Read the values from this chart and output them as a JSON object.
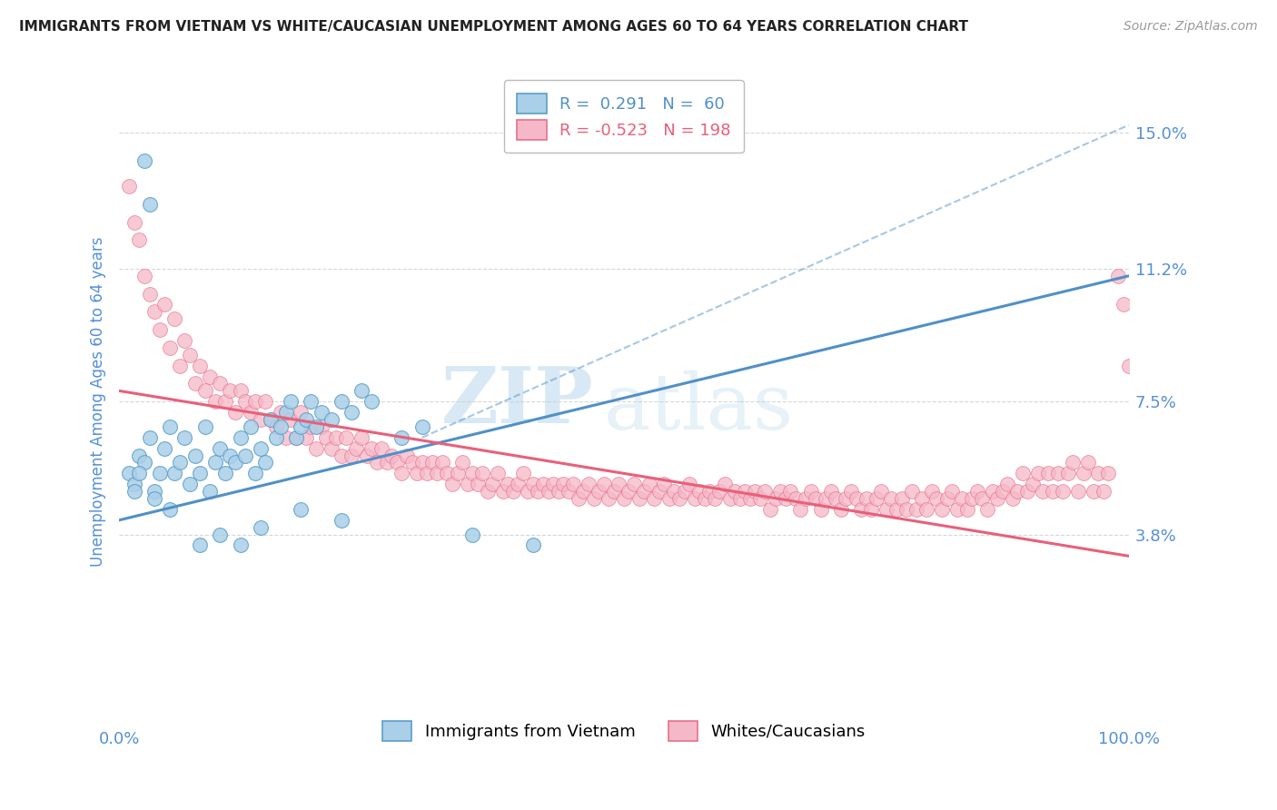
{
  "title": "IMMIGRANTS FROM VIETNAM VS WHITE/CAUCASIAN UNEMPLOYMENT AMONG AGES 60 TO 64 YEARS CORRELATION CHART",
  "source": "Source: ZipAtlas.com",
  "ylabel": "Unemployment Among Ages 60 to 64 years",
  "xlim": [
    0,
    100
  ],
  "ylim": [
    -1.5,
    16.5
  ],
  "ytick_vals": [
    3.8,
    7.5,
    11.2,
    15.0
  ],
  "ytick_labels": [
    "3.8%",
    "7.5%",
    "11.2%",
    "15.0%"
  ],
  "legend_blue_r": "R =  0.291",
  "legend_blue_n": "N =  60",
  "legend_pink_r": "R = -0.523",
  "legend_pink_n": "N = 198",
  "blue_color": "#aacfe8",
  "pink_color": "#f5b8c8",
  "blue_edge_color": "#5a9ec8",
  "pink_edge_color": "#e8708a",
  "blue_line_color": "#5090c8",
  "pink_line_color": "#e8607a",
  "grid_color": "#cccccc",
  "title_color": "#222222",
  "tick_color": "#5590d8",
  "watermark_zip": "ZIP",
  "watermark_atlas": "atlas",
  "background_color": "#ffffff",
  "blue_scatter": [
    [
      1.0,
      5.5
    ],
    [
      1.5,
      5.2
    ],
    [
      2.0,
      6.0
    ],
    [
      2.5,
      5.8
    ],
    [
      3.0,
      6.5
    ],
    [
      3.5,
      5.0
    ],
    [
      4.0,
      5.5
    ],
    [
      4.5,
      6.2
    ],
    [
      5.0,
      6.8
    ],
    [
      5.5,
      5.5
    ],
    [
      6.0,
      5.8
    ],
    [
      6.5,
      6.5
    ],
    [
      7.0,
      5.2
    ],
    [
      7.5,
      6.0
    ],
    [
      8.0,
      5.5
    ],
    [
      8.5,
      6.8
    ],
    [
      9.0,
      5.0
    ],
    [
      9.5,
      5.8
    ],
    [
      10.0,
      6.2
    ],
    [
      10.5,
      5.5
    ],
    [
      11.0,
      6.0
    ],
    [
      11.5,
      5.8
    ],
    [
      12.0,
      6.5
    ],
    [
      12.5,
      6.0
    ],
    [
      13.0,
      6.8
    ],
    [
      13.5,
      5.5
    ],
    [
      14.0,
      6.2
    ],
    [
      14.5,
      5.8
    ],
    [
      15.0,
      7.0
    ],
    [
      15.5,
      6.5
    ],
    [
      16.0,
      6.8
    ],
    [
      16.5,
      7.2
    ],
    [
      17.0,
      7.5
    ],
    [
      17.5,
      6.5
    ],
    [
      18.0,
      6.8
    ],
    [
      18.5,
      7.0
    ],
    [
      19.0,
      7.5
    ],
    [
      19.5,
      6.8
    ],
    [
      20.0,
      7.2
    ],
    [
      21.0,
      7.0
    ],
    [
      22.0,
      7.5
    ],
    [
      23.0,
      7.2
    ],
    [
      24.0,
      7.8
    ],
    [
      25.0,
      7.5
    ],
    [
      3.0,
      13.0
    ],
    [
      2.5,
      14.2
    ],
    [
      8.0,
      3.5
    ],
    [
      10.0,
      3.8
    ],
    [
      12.0,
      3.5
    ],
    [
      14.0,
      4.0
    ],
    [
      18.0,
      4.5
    ],
    [
      22.0,
      4.2
    ],
    [
      28.0,
      6.5
    ],
    [
      30.0,
      6.8
    ],
    [
      1.5,
      5.0
    ],
    [
      2.0,
      5.5
    ],
    [
      3.5,
      4.8
    ],
    [
      5.0,
      4.5
    ],
    [
      35.0,
      3.8
    ],
    [
      41.0,
      3.5
    ]
  ],
  "pink_scatter": [
    [
      1.0,
      13.5
    ],
    [
      1.5,
      12.5
    ],
    [
      2.0,
      12.0
    ],
    [
      2.5,
      11.0
    ],
    [
      3.0,
      10.5
    ],
    [
      3.5,
      10.0
    ],
    [
      4.0,
      9.5
    ],
    [
      4.5,
      10.2
    ],
    [
      5.0,
      9.0
    ],
    [
      5.5,
      9.8
    ],
    [
      6.0,
      8.5
    ],
    [
      6.5,
      9.2
    ],
    [
      7.0,
      8.8
    ],
    [
      7.5,
      8.0
    ],
    [
      8.0,
      8.5
    ],
    [
      8.5,
      7.8
    ],
    [
      9.0,
      8.2
    ],
    [
      9.5,
      7.5
    ],
    [
      10.0,
      8.0
    ],
    [
      10.5,
      7.5
    ],
    [
      11.0,
      7.8
    ],
    [
      11.5,
      7.2
    ],
    [
      12.0,
      7.8
    ],
    [
      12.5,
      7.5
    ],
    [
      13.0,
      7.2
    ],
    [
      13.5,
      7.5
    ],
    [
      14.0,
      7.0
    ],
    [
      14.5,
      7.5
    ],
    [
      15.0,
      7.0
    ],
    [
      15.5,
      6.8
    ],
    [
      16.0,
      7.2
    ],
    [
      16.5,
      6.5
    ],
    [
      17.0,
      7.0
    ],
    [
      17.5,
      6.5
    ],
    [
      18.0,
      7.2
    ],
    [
      18.5,
      6.5
    ],
    [
      19.0,
      6.8
    ],
    [
      19.5,
      6.2
    ],
    [
      20.0,
      6.8
    ],
    [
      20.5,
      6.5
    ],
    [
      21.0,
      6.2
    ],
    [
      21.5,
      6.5
    ],
    [
      22.0,
      6.0
    ],
    [
      22.5,
      6.5
    ],
    [
      23.0,
      6.0
    ],
    [
      23.5,
      6.2
    ],
    [
      24.0,
      6.5
    ],
    [
      24.5,
      6.0
    ],
    [
      25.0,
      6.2
    ],
    [
      25.5,
      5.8
    ],
    [
      26.0,
      6.2
    ],
    [
      26.5,
      5.8
    ],
    [
      27.0,
      6.0
    ],
    [
      27.5,
      5.8
    ],
    [
      28.0,
      5.5
    ],
    [
      28.5,
      6.0
    ],
    [
      29.0,
      5.8
    ],
    [
      29.5,
      5.5
    ],
    [
      30.0,
      5.8
    ],
    [
      30.5,
      5.5
    ],
    [
      31.0,
      5.8
    ],
    [
      31.5,
      5.5
    ],
    [
      32.0,
      5.8
    ],
    [
      32.5,
      5.5
    ],
    [
      33.0,
      5.2
    ],
    [
      33.5,
      5.5
    ],
    [
      34.0,
      5.8
    ],
    [
      34.5,
      5.2
    ],
    [
      35.0,
      5.5
    ],
    [
      35.5,
      5.2
    ],
    [
      36.0,
      5.5
    ],
    [
      36.5,
      5.0
    ],
    [
      37.0,
      5.2
    ],
    [
      37.5,
      5.5
    ],
    [
      38.0,
      5.0
    ],
    [
      38.5,
      5.2
    ],
    [
      39.0,
      5.0
    ],
    [
      39.5,
      5.2
    ],
    [
      40.0,
      5.5
    ],
    [
      40.5,
      5.0
    ],
    [
      41.0,
      5.2
    ],
    [
      41.5,
      5.0
    ],
    [
      42.0,
      5.2
    ],
    [
      42.5,
      5.0
    ],
    [
      43.0,
      5.2
    ],
    [
      43.5,
      5.0
    ],
    [
      44.0,
      5.2
    ],
    [
      44.5,
      5.0
    ],
    [
      45.0,
      5.2
    ],
    [
      45.5,
      4.8
    ],
    [
      46.0,
      5.0
    ],
    [
      46.5,
      5.2
    ],
    [
      47.0,
      4.8
    ],
    [
      47.5,
      5.0
    ],
    [
      48.0,
      5.2
    ],
    [
      48.5,
      4.8
    ],
    [
      49.0,
      5.0
    ],
    [
      49.5,
      5.2
    ],
    [
      50.0,
      4.8
    ],
    [
      50.5,
      5.0
    ],
    [
      51.0,
      5.2
    ],
    [
      51.5,
      4.8
    ],
    [
      52.0,
      5.0
    ],
    [
      52.5,
      5.2
    ],
    [
      53.0,
      4.8
    ],
    [
      53.5,
      5.0
    ],
    [
      54.0,
      5.2
    ],
    [
      54.5,
      4.8
    ],
    [
      55.0,
      5.0
    ],
    [
      55.5,
      4.8
    ],
    [
      56.0,
      5.0
    ],
    [
      56.5,
      5.2
    ],
    [
      57.0,
      4.8
    ],
    [
      57.5,
      5.0
    ],
    [
      58.0,
      4.8
    ],
    [
      58.5,
      5.0
    ],
    [
      59.0,
      4.8
    ],
    [
      59.5,
      5.0
    ],
    [
      60.0,
      5.2
    ],
    [
      60.5,
      4.8
    ],
    [
      61.0,
      5.0
    ],
    [
      61.5,
      4.8
    ],
    [
      62.0,
      5.0
    ],
    [
      62.5,
      4.8
    ],
    [
      63.0,
      5.0
    ],
    [
      63.5,
      4.8
    ],
    [
      64.0,
      5.0
    ],
    [
      64.5,
      4.5
    ],
    [
      65.0,
      4.8
    ],
    [
      65.5,
      5.0
    ],
    [
      66.0,
      4.8
    ],
    [
      66.5,
      5.0
    ],
    [
      67.0,
      4.8
    ],
    [
      67.5,
      4.5
    ],
    [
      68.0,
      4.8
    ],
    [
      68.5,
      5.0
    ],
    [
      69.0,
      4.8
    ],
    [
      69.5,
      4.5
    ],
    [
      70.0,
      4.8
    ],
    [
      70.5,
      5.0
    ],
    [
      71.0,
      4.8
    ],
    [
      71.5,
      4.5
    ],
    [
      72.0,
      4.8
    ],
    [
      72.5,
      5.0
    ],
    [
      73.0,
      4.8
    ],
    [
      73.5,
      4.5
    ],
    [
      74.0,
      4.8
    ],
    [
      74.5,
      4.5
    ],
    [
      75.0,
      4.8
    ],
    [
      75.5,
      5.0
    ],
    [
      76.0,
      4.5
    ],
    [
      76.5,
      4.8
    ],
    [
      77.0,
      4.5
    ],
    [
      77.5,
      4.8
    ],
    [
      78.0,
      4.5
    ],
    [
      78.5,
      5.0
    ],
    [
      79.0,
      4.5
    ],
    [
      79.5,
      4.8
    ],
    [
      80.0,
      4.5
    ],
    [
      80.5,
      5.0
    ],
    [
      81.0,
      4.8
    ],
    [
      81.5,
      4.5
    ],
    [
      82.0,
      4.8
    ],
    [
      82.5,
      5.0
    ],
    [
      83.0,
      4.5
    ],
    [
      83.5,
      4.8
    ],
    [
      84.0,
      4.5
    ],
    [
      84.5,
      4.8
    ],
    [
      85.0,
      5.0
    ],
    [
      85.5,
      4.8
    ],
    [
      86.0,
      4.5
    ],
    [
      86.5,
      5.0
    ],
    [
      87.0,
      4.8
    ],
    [
      87.5,
      5.0
    ],
    [
      88.0,
      5.2
    ],
    [
      88.5,
      4.8
    ],
    [
      89.0,
      5.0
    ],
    [
      89.5,
      5.5
    ],
    [
      90.0,
      5.0
    ],
    [
      90.5,
      5.2
    ],
    [
      91.0,
      5.5
    ],
    [
      91.5,
      5.0
    ],
    [
      92.0,
      5.5
    ],
    [
      92.5,
      5.0
    ],
    [
      93.0,
      5.5
    ],
    [
      93.5,
      5.0
    ],
    [
      94.0,
      5.5
    ],
    [
      94.5,
      5.8
    ],
    [
      95.0,
      5.0
    ],
    [
      95.5,
      5.5
    ],
    [
      96.0,
      5.8
    ],
    [
      96.5,
      5.0
    ],
    [
      97.0,
      5.5
    ],
    [
      97.5,
      5.0
    ],
    [
      98.0,
      5.5
    ],
    [
      99.0,
      11.0
    ],
    [
      99.5,
      10.2
    ],
    [
      100.0,
      8.5
    ]
  ],
  "blue_trend_x": [
    0,
    100
  ],
  "blue_trend_y": [
    4.2,
    11.0
  ],
  "pink_trend_x": [
    0,
    100
  ],
  "pink_trend_y": [
    7.8,
    3.2
  ]
}
